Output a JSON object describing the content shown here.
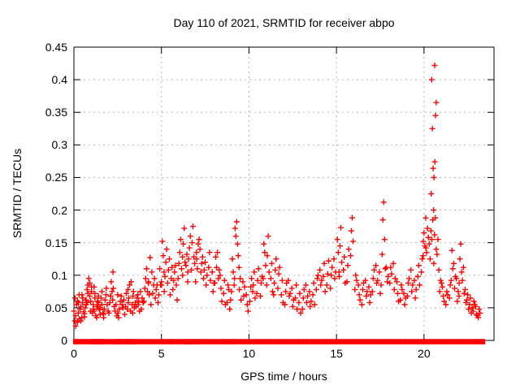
{
  "chart_data": {
    "type": "scatter",
    "title": "Day 110 of 2021, SRMTID for receiver abpo",
    "xlabel": "GPS time / hours",
    "ylabel": "SRMTID / TECUs",
    "xlim": [
      0,
      24
    ],
    "ylim": [
      0,
      0.45
    ],
    "grid": true,
    "legend": "none",
    "marker": "plus",
    "marker_color": "#ff0000",
    "grid_color": "#b0b0b0",
    "axis_color": "#000000",
    "xticks": [
      {
        "v": 0,
        "label": "0"
      },
      {
        "v": 5,
        "label": "5"
      },
      {
        "v": 10,
        "label": "10"
      },
      {
        "v": 15,
        "label": "15"
      },
      {
        "v": 20,
        "label": "20"
      }
    ],
    "yticks": [
      {
        "v": 0,
        "label": "0"
      },
      {
        "v": 0.05,
        "label": "0.05"
      },
      {
        "v": 0.1,
        "label": "0.1"
      },
      {
        "v": 0.15,
        "label": "0.15"
      },
      {
        "v": 0.2,
        "label": "0.2"
      },
      {
        "v": 0.25,
        "label": "0.25"
      },
      {
        "v": 0.3,
        "label": "0.3"
      },
      {
        "v": 0.35,
        "label": "0.35"
      },
      {
        "v": 0.4,
        "label": "0.4"
      },
      {
        "v": 0.45,
        "label": "0.45"
      }
    ],
    "column_jitter": [
      0,
      -0.05,
      0.05,
      -0.09,
      0.09,
      0.13,
      -0.13,
      0.04
    ],
    "points_columns": [
      [
        0.05,
        [
          0.03,
          0.045,
          0.022
        ]
      ],
      [
        0.15,
        [
          0.055,
          0.038,
          0.028,
          0.065
        ]
      ],
      [
        0.25,
        [
          0.042,
          0.06,
          0.033
        ]
      ],
      [
        0.35,
        [
          0.048,
          0.07,
          0.03,
          0.058
        ]
      ],
      [
        0.45,
        [
          0.035,
          0.052,
          0.065
        ]
      ],
      [
        0.55,
        [
          0.044,
          0.058,
          0.036,
          0.07
        ]
      ],
      [
        0.65,
        [
          0.05,
          0.041,
          0.062
        ]
      ],
      [
        0.75,
        [
          0.078,
          0.055,
          0.085,
          0.062
        ]
      ],
      [
        0.85,
        [
          0.095,
          0.072,
          0.088,
          0.058
        ]
      ],
      [
        0.95,
        [
          0.045,
          0.068,
          0.082
        ]
      ],
      [
        1.05,
        [
          0.042,
          0.075,
          0.055,
          0.06
        ]
      ],
      [
        1.15,
        [
          0.082,
          0.048,
          0.065
        ]
      ],
      [
        1.25,
        [
          0.038,
          0.072,
          0.052,
          0.045
        ]
      ],
      [
        1.35,
        [
          0.06,
          0.035,
          0.068
        ]
      ],
      [
        1.45,
        [
          0.047,
          0.058,
          0.04,
          0.052
        ]
      ],
      [
        1.55,
        [
          0.065,
          0.05,
          0.075
        ]
      ],
      [
        1.65,
        [
          0.042,
          0.055,
          0.035
        ]
      ],
      [
        1.78,
        [
          0.062,
          0.048,
          0.07,
          0.04
        ]
      ],
      [
        1.9,
        [
          0.055,
          0.08,
          0.045
        ]
      ],
      [
        2.05,
        [
          0.058,
          0.042,
          0.068
        ]
      ],
      [
        2.18,
        [
          0.075,
          0.09,
          0.105,
          0.068
        ]
      ],
      [
        2.3,
        [
          0.052,
          0.08,
          0.045,
          0.062
        ]
      ],
      [
        2.45,
        [
          0.038,
          0.055,
          0.07
        ]
      ],
      [
        2.6,
        [
          0.048,
          0.035,
          0.06,
          0.042
        ]
      ],
      [
        2.75,
        [
          0.055,
          0.068,
          0.05
        ]
      ],
      [
        2.9,
        [
          0.04,
          0.062,
          0.052
        ]
      ],
      [
        3.05,
        [
          0.048,
          0.072,
          0.058
        ]
      ],
      [
        3.18,
        [
          0.085,
          0.065,
          0.045,
          0.078
        ]
      ],
      [
        3.32,
        [
          0.055,
          0.09,
          0.068
        ]
      ],
      [
        3.45,
        [
          0.05,
          0.075,
          0.058,
          0.042
        ]
      ],
      [
        3.6,
        [
          0.065,
          0.052,
          0.07
        ]
      ],
      [
        3.75,
        [
          0.045,
          0.06,
          0.075,
          0.055
        ]
      ],
      [
        3.9,
        [
          0.065,
          0.048,
          0.058
        ]
      ],
      [
        4.05,
        [
          0.08,
          0.06,
          0.095
        ]
      ],
      [
        4.2,
        [
          0.075,
          0.11,
          0.088
        ]
      ],
      [
        4.35,
        [
          0.127,
          0.07,
          0.055,
          0.09
        ]
      ],
      [
        4.5,
        [
          0.072,
          0.105,
          0.085
        ]
      ],
      [
        4.65,
        [
          0.065,
          0.095,
          0.078
        ]
      ],
      [
        4.8,
        [
          0.058,
          0.085,
          0.07
        ]
      ],
      [
        4.95,
        [
          0.085,
          0.11,
          0.09
        ]
      ],
      [
        5.1,
        [
          0.13,
          0.152,
          0.105,
          0.085
        ]
      ],
      [
        5.25,
        [
          0.12,
          0.098,
          0.14,
          0.075
        ]
      ],
      [
        5.4,
        [
          0.108,
          0.088,
          0.125
        ]
      ],
      [
        5.55,
        [
          0.095,
          0.07,
          0.112
        ]
      ],
      [
        5.7,
        [
          0.092,
          0.078,
          0.105
        ]
      ],
      [
        5.85,
        [
          0.085,
          0.115,
          0.062
        ]
      ],
      [
        6.0,
        [
          0.118,
          0.095,
          0.135
        ]
      ],
      [
        6.15,
        [
          0.11,
          0.155,
          0.128
        ]
      ],
      [
        6.3,
        [
          0.172,
          0.148,
          0.12,
          0.1
        ]
      ],
      [
        6.45,
        [
          0.132,
          0.115,
          0.09
        ]
      ],
      [
        6.6,
        [
          0.142,
          0.125,
          0.16,
          0.105
        ]
      ],
      [
        6.8,
        [
          0.175,
          0.15,
          0.128,
          0.108
        ]
      ],
      [
        6.95,
        [
          0.09,
          0.118,
          0.135
        ]
      ],
      [
        7.1,
        [
          0.148,
          0.11,
          0.155,
          0.125
        ]
      ],
      [
        7.25,
        [
          0.105,
          0.14,
          0.118
        ]
      ],
      [
        7.4,
        [
          0.095,
          0.128,
          0.108
        ]
      ],
      [
        7.55,
        [
          0.085,
          0.12,
          0.1
        ]
      ],
      [
        7.75,
        [
          0.135,
          0.112,
          0.092
        ]
      ],
      [
        7.95,
        [
          0.075,
          0.105,
          0.088
        ]
      ],
      [
        8.1,
        [
          0.128,
          0.088,
          0.112
        ]
      ],
      [
        8.25,
        [
          0.095,
          0.135,
          0.108
        ]
      ],
      [
        8.4,
        [
          0.08,
          0.1,
          0.06
        ]
      ],
      [
        8.6,
        [
          0.092,
          0.072,
          0.055
        ]
      ],
      [
        8.8,
        [
          0.085,
          0.058,
          0.078
        ]
      ],
      [
        8.95,
        [
          0.062,
          0.048,
          0.075
        ]
      ],
      [
        9.1,
        [
          0.105,
          0.125,
          0.085
        ]
      ],
      [
        9.3,
        [
          0.182,
          0.16,
          0.148,
          0.172,
          0.13,
          0.112,
          0.095
        ]
      ],
      [
        9.5,
        [
          0.095,
          0.078,
          0.062
        ]
      ],
      [
        9.7,
        [
          0.068,
          0.09,
          0.082
        ]
      ],
      [
        9.9,
        [
          0.055,
          0.07,
          0.045
        ]
      ],
      [
        10.1,
        [
          0.082,
          0.06,
          0.095
        ]
      ],
      [
        10.3,
        [
          0.105,
          0.085,
          0.065,
          0.075
        ]
      ],
      [
        10.5,
        [
          0.092,
          0.072,
          0.11
        ]
      ],
      [
        10.7,
        [
          0.088,
          0.068,
          0.098
        ]
      ],
      [
        10.9,
        [
          0.135,
          0.148,
          0.115,
          0.095
        ]
      ],
      [
        11.1,
        [
          0.16,
          0.13,
          0.105,
          0.085
        ]
      ],
      [
        11.3,
        [
          0.118,
          0.095,
          0.075
        ]
      ],
      [
        11.5,
        [
          0.108,
          0.088,
          0.125,
          0.07
        ]
      ],
      [
        11.7,
        [
          0.102,
          0.08,
          0.112
        ]
      ],
      [
        11.9,
        [
          0.092,
          0.07,
          0.058
        ]
      ],
      [
        12.1,
        [
          0.075,
          0.055,
          0.088
        ]
      ],
      [
        12.3,
        [
          0.068,
          0.092,
          0.072
        ]
      ],
      [
        12.5,
        [
          0.052,
          0.08,
          0.062
        ]
      ],
      [
        12.7,
        [
          0.085,
          0.065,
          0.048
        ]
      ],
      [
        12.9,
        [
          0.072,
          0.058,
          0.042
        ]
      ],
      [
        13.1,
        [
          0.065,
          0.048,
          0.078
        ]
      ],
      [
        13.3,
        [
          0.058,
          0.085,
          0.068
        ]
      ],
      [
        13.5,
        [
          0.052,
          0.075,
          0.06
        ]
      ],
      [
        13.7,
        [
          0.088,
          0.07,
          0.055
        ]
      ],
      [
        13.9,
        [
          0.095,
          0.078,
          0.1
        ]
      ],
      [
        14.1,
        [
          0.085,
          0.108,
          0.092
        ]
      ],
      [
        14.3,
        [
          0.118,
          0.098,
          0.075
        ]
      ],
      [
        14.5,
        [
          0.102,
          0.085,
          0.122
        ]
      ],
      [
        14.7,
        [
          0.1,
          0.08,
          0.112
        ]
      ],
      [
        14.9,
        [
          0.095,
          0.125,
          0.105
        ]
      ],
      [
        15.1,
        [
          0.135,
          0.155,
          0.105
        ]
      ],
      [
        15.25,
        [
          0.173,
          0.145,
          0.12,
          0.098
        ]
      ],
      [
        15.45,
        [
          0.128,
          0.108,
          0.088
        ]
      ],
      [
        15.65,
        [
          0.115,
          0.09,
          0.14
        ]
      ],
      [
        15.9,
        [
          0.188,
          0.168,
          0.152,
          0.13
        ]
      ],
      [
        16.1,
        [
          0.1,
          0.078,
          0.092
        ]
      ],
      [
        16.3,
        [
          0.07,
          0.085,
          0.062
        ]
      ],
      [
        16.5,
        [
          0.078,
          0.055,
          0.088
        ]
      ],
      [
        16.7,
        [
          0.068,
          0.092,
          0.075
        ]
      ],
      [
        16.9,
        [
          0.058,
          0.082,
          0.07
        ]
      ],
      [
        17.1,
        [
          0.095,
          0.075,
          0.108
        ]
      ],
      [
        17.3,
        [
          0.088,
          0.115,
          0.092
        ]
      ],
      [
        17.5,
        [
          0.072,
          0.105,
          0.085
        ]
      ],
      [
        17.7,
        [
          0.212,
          0.185,
          0.155,
          0.132,
          0.11
        ]
      ],
      [
        17.9,
        [
          0.09,
          0.112,
          0.098
        ]
      ],
      [
        18.1,
        [
          0.112,
          0.088,
          0.102
        ]
      ],
      [
        18.3,
        [
          0.078,
          0.118,
          0.095
        ]
      ],
      [
        18.5,
        [
          0.072,
          0.09,
          0.06
        ]
      ],
      [
        18.7,
        [
          0.085,
          0.062,
          0.078
        ]
      ],
      [
        18.9,
        [
          0.055,
          0.072,
          0.065
        ]
      ],
      [
        19.1,
        [
          0.088,
          0.068,
          0.095
        ]
      ],
      [
        19.3,
        [
          0.075,
          0.108,
          0.085
        ]
      ],
      [
        19.5,
        [
          0.065,
          0.092,
          0.078
        ]
      ],
      [
        19.7,
        [
          0.115,
          0.098,
          0.085
        ]
      ],
      [
        19.9,
        [
          0.125,
          0.105,
          0.13
        ]
      ],
      [
        20.05,
        [
          0.145,
          0.165,
          0.188,
          0.152
        ]
      ],
      [
        20.2,
        [
          0.172,
          0.135,
          0.158,
          0.142
        ]
      ],
      [
        20.35,
        [
          0.125,
          0.148,
          0.168
        ]
      ],
      [
        20.5,
        [
          0.185,
          0.155,
          0.2,
          0.225
        ]
      ],
      [
        20.57,
        [
          0.25,
          0.264,
          0.274,
          0.325,
          0.345,
          0.365,
          0.4,
          0.422
        ]
      ],
      [
        20.65,
        [
          0.188,
          0.162,
          0.14,
          0.118
        ]
      ],
      [
        20.8,
        [
          0.155,
          0.132,
          0.108
        ]
      ],
      [
        20.95,
        [
          0.092,
          0.075,
          0.088
        ]
      ],
      [
        21.1,
        [
          0.068,
          0.082,
          0.06
        ]
      ],
      [
        21.3,
        [
          0.075,
          0.055,
          0.07
        ]
      ],
      [
        21.5,
        [
          0.085,
          0.065,
          0.092
        ]
      ],
      [
        21.65,
        [
          0.11,
          0.138,
          0.118
        ]
      ],
      [
        21.8,
        [
          0.098,
          0.08,
          0.095
        ]
      ],
      [
        21.95,
        [
          0.075,
          0.06,
          0.068
        ]
      ],
      [
        22.1,
        [
          0.148,
          0.125,
          0.105,
          0.088
        ]
      ],
      [
        22.25,
        [
          0.112,
          0.092,
          0.072
        ]
      ],
      [
        22.4,
        [
          0.058,
          0.078,
          0.062
        ]
      ],
      [
        22.55,
        [
          0.048,
          0.07,
          0.055
        ]
      ],
      [
        22.7,
        [
          0.042,
          0.065,
          0.05
        ]
      ],
      [
        22.85,
        [
          0.06,
          0.045,
          0.055
        ]
      ],
      [
        23.0,
        [
          0.04,
          0.052,
          0.038
        ]
      ],
      [
        23.15,
        [
          0.048,
          0.035,
          0.042
        ]
      ]
    ],
    "zero_x": [
      0.1,
      0.25,
      0.55,
      0.8,
      1.0,
      1.15,
      1.3,
      1.45,
      1.6,
      1.75,
      2.0,
      2.2,
      2.35,
      2.5,
      2.6,
      2.75,
      3.0,
      3.1,
      3.2,
      3.35,
      3.5,
      3.65,
      3.9,
      4.15,
      4.4,
      4.7,
      5.0,
      5.2,
      5.45,
      5.6,
      5.8,
      6.05,
      6.25,
      6.45,
      6.6,
      6.75,
      6.9,
      7.1,
      7.3,
      7.55,
      7.8,
      8.0,
      8.2,
      8.45,
      8.6,
      8.8,
      9.0,
      9.15,
      9.4,
      9.65,
      9.9,
      10.15,
      10.4,
      10.6,
      10.85,
      11.1,
      11.35,
      11.6,
      11.8,
      12.05,
      12.3,
      12.55,
      12.75,
      12.95,
      13.2,
      13.45,
      13.7,
      13.95,
      14.2,
      14.4,
      14.6,
      14.85,
      15.1,
      15.35,
      15.6,
      15.8,
      16.05,
      16.3,
      16.55,
      16.8,
      17.05,
      17.3,
      17.55,
      17.8,
      18.05,
      18.3,
      18.55,
      18.8,
      19.05,
      19.3,
      19.55,
      19.8,
      20.05,
      20.3,
      20.55,
      20.8,
      21.05,
      21.3,
      21.55,
      21.8,
      22.05,
      22.3,
      22.55,
      22.8,
      23.0,
      23.2,
      23.35
    ]
  }
}
